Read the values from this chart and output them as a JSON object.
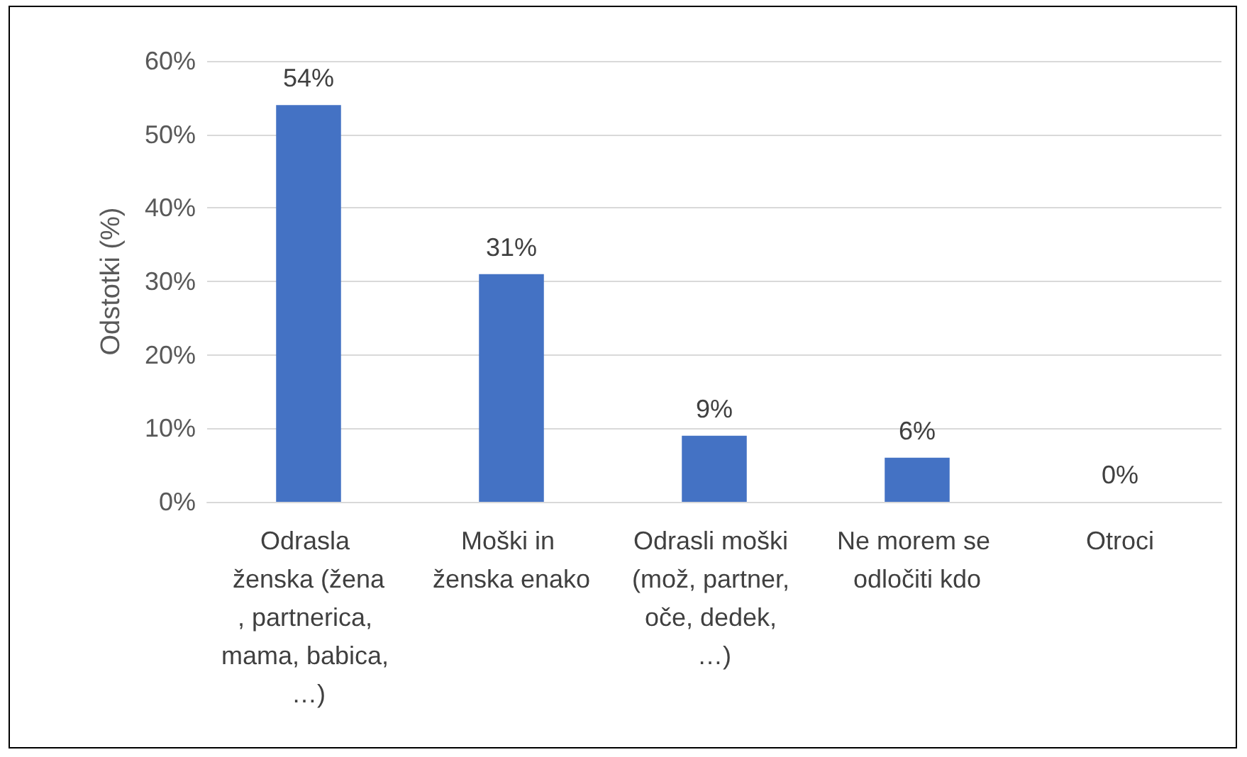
{
  "chart_data": {
    "type": "bar",
    "ylabel": "Odstotki (%)",
    "categories": [
      "Odrasla ženska (žena, partnerica, mama, babica, …)",
      "Moški in ženska enako",
      "Odrasli moški (mož, partner, oče, dedek, …)",
      "Ne morem se odločiti kdo",
      "Otroci"
    ],
    "values": [
      54,
      31,
      9,
      6,
      0
    ],
    "color": "#4472c4",
    "value_labels": [
      "54%",
      "31%",
      "9%",
      "6%",
      "0%"
    ],
    "ylim": [
      0,
      60
    ],
    "yticks": [
      {
        "value": 0,
        "label": "0%"
      },
      {
        "value": 10,
        "label": "10%"
      },
      {
        "value": 20,
        "label": "20%"
      },
      {
        "value": 30,
        "label": "30%"
      },
      {
        "value": 40,
        "label": "40%"
      },
      {
        "value": 50,
        "label": "50%"
      },
      {
        "value": 60,
        "label": "60%"
      }
    ],
    "grid": "y"
  }
}
